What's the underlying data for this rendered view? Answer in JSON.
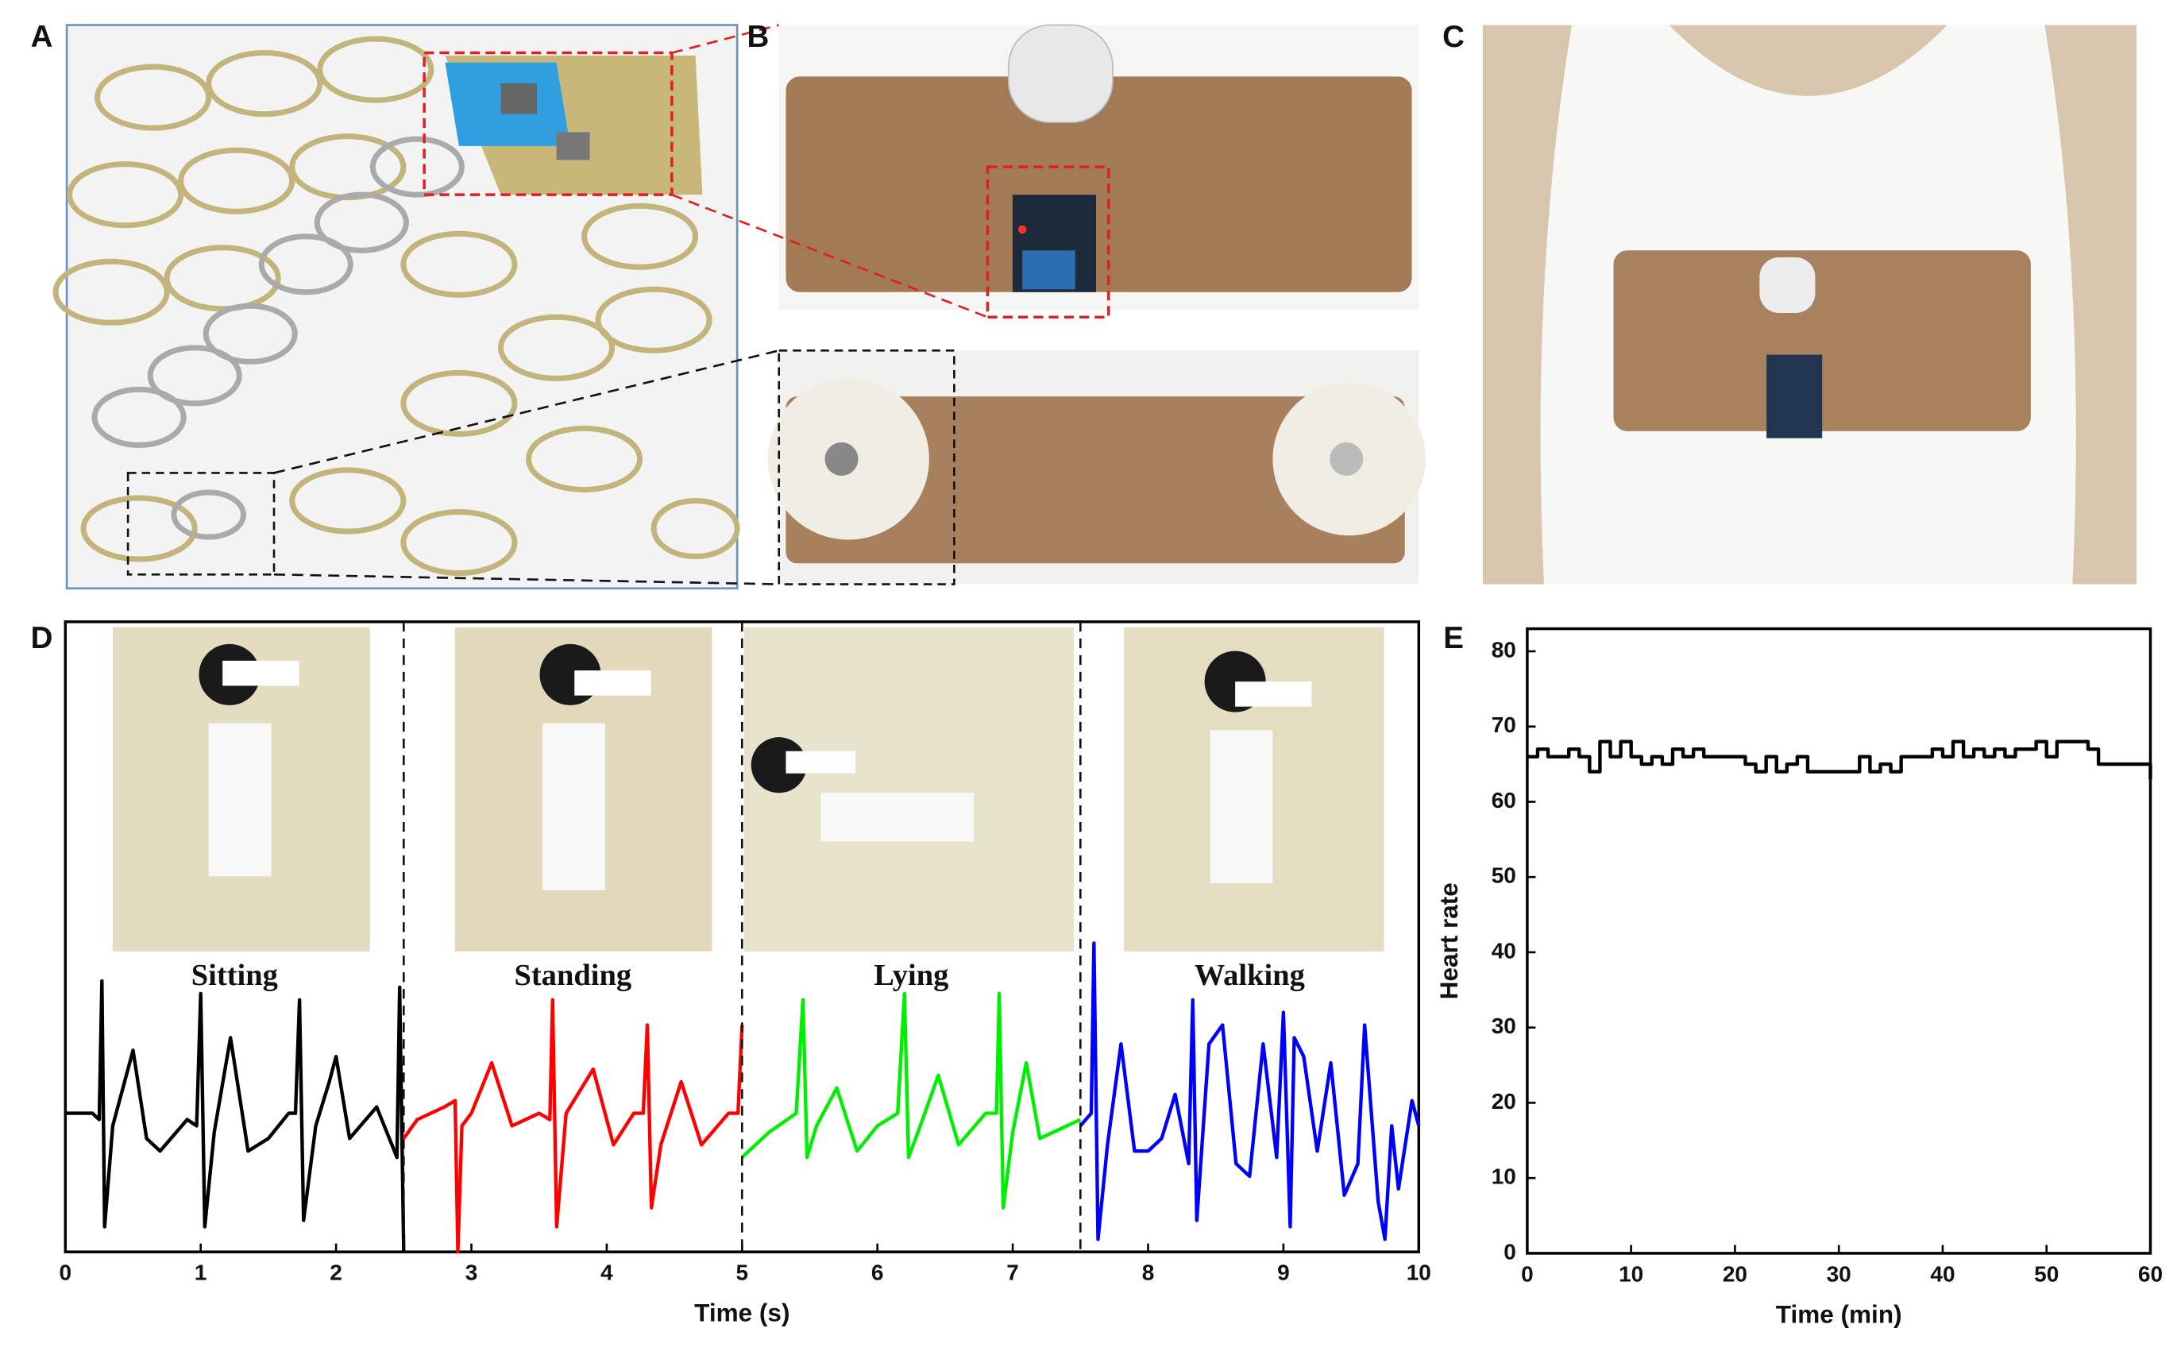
{
  "panel_labels": [
    "A",
    "B",
    "C",
    "D",
    "E"
  ],
  "chart_data": [
    {
      "type": "line",
      "xlabel": "Time (s)",
      "xlim": [
        0,
        10
      ],
      "ylim": [
        0,
        100
      ],
      "xticks": [
        0,
        1,
        2,
        3,
        4,
        5,
        6,
        7,
        8,
        9,
        10
      ],
      "series": [
        {
          "name": "Sitting",
          "color": "#000000",
          "x": [
            0,
            0.2,
            0.25,
            0.27,
            0.29,
            0.35,
            0.5,
            0.6,
            0.7,
            0.9,
            0.97,
            1.0,
            1.03,
            1.1,
            1.22,
            1.35,
            1.5,
            1.65,
            1.7,
            1.73,
            1.76,
            1.85,
            1.95,
            2.0,
            2.1,
            2.3,
            2.45,
            2.47,
            2.5
          ],
          "values": [
            22,
            22,
            21,
            43,
            4,
            20,
            32,
            18,
            16,
            21,
            20,
            41,
            4,
            19,
            34,
            16,
            18,
            22,
            22,
            40,
            5,
            20,
            27,
            31,
            18,
            23,
            15,
            42,
            0
          ]
        },
        {
          "name": "Standing",
          "color": "#ff0000",
          "x": [
            2.5,
            2.6,
            2.8,
            2.88,
            2.9,
            2.93,
            3.0,
            3.15,
            3.3,
            3.5,
            3.58,
            3.6,
            3.63,
            3.7,
            3.9,
            4.05,
            4.2,
            4.27,
            4.3,
            4.33,
            4.4,
            4.55,
            4.7,
            4.9,
            4.97,
            5.0
          ],
          "values": [
            18,
            21,
            23,
            24,
            0,
            20,
            22,
            30,
            20,
            22,
            21,
            40,
            4,
            22,
            29,
            17,
            22,
            22,
            36,
            7,
            17,
            27,
            17,
            22,
            22,
            36
          ]
        },
        {
          "name": "Lying",
          "color": "#00ee00",
          "x": [
            5.0,
            5.2,
            5.4,
            5.45,
            5.48,
            5.55,
            5.7,
            5.85,
            6.0,
            6.15,
            6.2,
            6.23,
            6.3,
            6.45,
            6.6,
            6.8,
            6.88,
            6.9,
            6.93,
            7.0,
            7.1,
            7.2,
            7.4,
            7.5
          ],
          "values": [
            15,
            19,
            22,
            40,
            15,
            20,
            26,
            16,
            20,
            22,
            41,
            15,
            19,
            28,
            17,
            22,
            22,
            41,
            7,
            19,
            30,
            18,
            20,
            21
          ]
        },
        {
          "name": "Walking",
          "color": "#0000ff",
          "x": [
            7.5,
            7.58,
            7.6,
            7.63,
            7.7,
            7.8,
            7.9,
            8.0,
            8.1,
            8.2,
            8.3,
            8.33,
            8.36,
            8.45,
            8.55,
            8.65,
            8.75,
            8.85,
            8.95,
            9.0,
            9.05,
            9.08,
            9.15,
            9.25,
            9.35,
            9.45,
            9.55,
            9.6,
            9.7,
            9.75,
            9.8,
            9.85,
            9.95,
            10
          ],
          "values": [
            20,
            22,
            49,
            2,
            17,
            33,
            16,
            16,
            18,
            25,
            14,
            40,
            5,
            33,
            36,
            14,
            12,
            33,
            15,
            38,
            4,
            34,
            31,
            16,
            30,
            9,
            14,
            36,
            8,
            2,
            20,
            10,
            24,
            20
          ]
        }
      ]
    },
    {
      "type": "line",
      "drawstyle": "steps-post",
      "xlabel": "Time (min)",
      "ylabel": "Heart rate",
      "xlim": [
        0,
        60
      ],
      "ylim": [
        0,
        83
      ],
      "xticks": [
        0,
        10,
        20,
        30,
        40,
        50,
        60
      ],
      "yticks": [
        0,
        10,
        20,
        30,
        40,
        50,
        60,
        70,
        80
      ],
      "series": [
        {
          "color": "#000000",
          "x": [
            0,
            1,
            2,
            3,
            4,
            5,
            6,
            7,
            8,
            9,
            10,
            11,
            12,
            13,
            14,
            15,
            16,
            17,
            18,
            19,
            20,
            21,
            22,
            23,
            24,
            25,
            26,
            27,
            28,
            29,
            30,
            31,
            32,
            33,
            34,
            35,
            36,
            37,
            38,
            39,
            40,
            41,
            42,
            43,
            44,
            45,
            46,
            47,
            48,
            49,
            50,
            51,
            52,
            53,
            54,
            55,
            56,
            57,
            58,
            59,
            60
          ],
          "values": [
            66,
            67,
            66,
            66,
            67,
            66,
            64,
            68,
            66,
            68,
            66,
            65,
            66,
            65,
            67,
            66,
            67,
            66,
            66,
            66,
            66,
            65,
            64,
            66,
            64,
            65,
            66,
            64,
            64,
            64,
            64,
            64,
            66,
            64,
            65,
            64,
            66,
            66,
            66,
            67,
            66,
            68,
            66,
            67,
            66,
            67,
            66,
            67,
            67,
            68,
            66,
            68,
            68,
            68,
            67,
            65,
            65,
            65,
            65,
            65,
            63
          ]
        }
      ]
    }
  ]
}
